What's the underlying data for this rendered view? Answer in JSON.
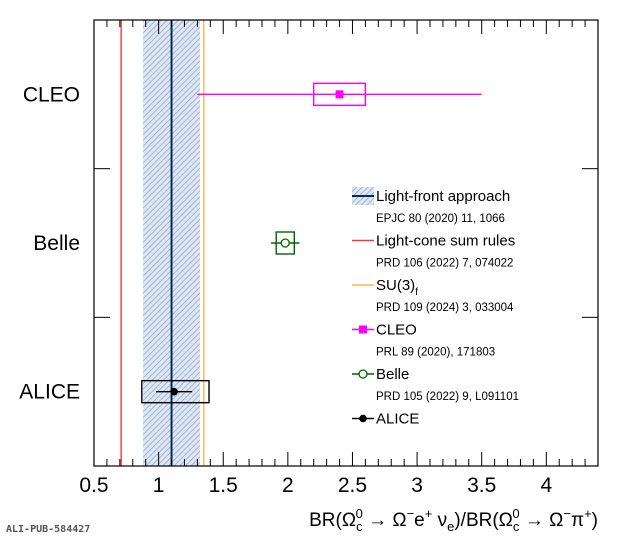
{
  "chart_data": {
    "type": "scatter",
    "title": "",
    "xlim": [
      0.5,
      4.4
    ],
    "x_ticks": [
      0.5,
      1,
      1.5,
      2,
      2.5,
      3,
      3.5,
      4
    ],
    "x_tick_labels": [
      "0.5",
      "1",
      "1.5",
      "2",
      "2.5",
      "3",
      "3.5",
      "4"
    ],
    "categories": [
      "CLEO",
      "Belle",
      "ALICE"
    ],
    "xlabel": {
      "prefix": "BR(Ω",
      "sub1": "c",
      "sup1": "0",
      "mid1": " → Ω",
      "sup2": "−",
      "mid2": "e",
      "sup3": "+",
      "mid3": " ν",
      "sub2": "e",
      "mid4": ")/BR(Ω",
      "sub3": "c",
      "sup4": "0",
      "mid5": " → Ω",
      "sup5": "−",
      "mid6": "π",
      "sup6": "+",
      "suffix": ")"
    },
    "measurements": [
      {
        "experiment": "CLEO",
        "value": 2.4,
        "stat_low": 1.3,
        "stat_high": 3.5,
        "syst_low": 2.2,
        "syst_high": 2.6,
        "color": "#ff00ff",
        "marker": "square"
      },
      {
        "experiment": "Belle",
        "value": 1.98,
        "stat_low": 1.87,
        "stat_high": 2.09,
        "syst_low": 1.91,
        "syst_high": 2.05,
        "color": "#006600",
        "marker": "open-circle"
      },
      {
        "experiment": "ALICE",
        "value": 1.12,
        "stat_low": 0.98,
        "stat_high": 1.26,
        "syst_low": 0.87,
        "syst_high": 1.39,
        "color": "#000000",
        "marker": "circle"
      }
    ],
    "theory": [
      {
        "name": "Light-front approach",
        "reference": "EPJC 80 (2020) 11, 1066",
        "center": 1.1,
        "band": [
          0.88,
          1.32
        ],
        "color": "#0a2a5a",
        "band_color": "#9db3d6"
      },
      {
        "name": "Light-cone sum rules",
        "reference": "PRD 106 (2022) 7, 074022",
        "center": 0.71,
        "color": "#ff3333"
      },
      {
        "name": "SU(3)",
        "name_sub": "f",
        "reference": "PRD 109 (2024) 3, 033004",
        "center": 1.35,
        "color": "#ffb347"
      }
    ],
    "legend": {
      "position": "right-middle",
      "entries": [
        {
          "label": "Light-front approach",
          "ref": "EPJC 80 (2020) 11, 1066"
        },
        {
          "label": "Light-cone sum rules",
          "ref": "PRD 106 (2022) 7, 074022"
        },
        {
          "label": "SU(3)",
          "label_sub": "f",
          "ref": "PRD 109 (2024) 3, 033004"
        },
        {
          "label": "CLEO",
          "ref": "PRL 89 (2020), 171803"
        },
        {
          "label": "Belle",
          "ref": "PRD 105 (2022) 9, L091101"
        },
        {
          "label": "ALICE",
          "ref": ""
        }
      ]
    },
    "grid": false
  },
  "publication_id": "ALI-PUB-584427"
}
